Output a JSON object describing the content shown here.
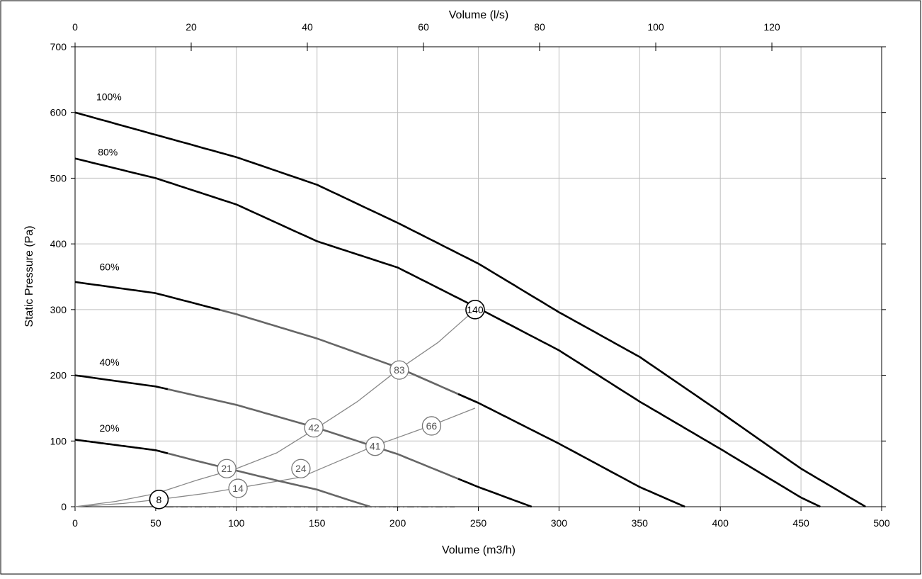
{
  "chart_data": {
    "type": "line",
    "title": "",
    "xlabel": "Volume (m3/h)",
    "ylabel": "Static Pressure (Pa)",
    "x2label": "Volume (l/s)",
    "xlim": [
      0,
      500
    ],
    "ylim": [
      0,
      700
    ],
    "x2lim": [
      0,
      138.9
    ],
    "grid": true,
    "x_ticks": [
      "0",
      "50",
      "100",
      "150",
      "200",
      "250",
      "300",
      "350",
      "400",
      "450",
      "500"
    ],
    "y_ticks": [
      "0",
      "100",
      "200",
      "300",
      "400",
      "500",
      "600",
      "700"
    ],
    "x2_ticks": [
      "0",
      "20",
      "40",
      "60",
      "80",
      "100",
      "120"
    ],
    "colors": {
      "fan_curve": "#000000",
      "operating_curve": "#666666",
      "system_curve": "#888888",
      "region_fill": "#f6f6f6"
    },
    "operating_region": {
      "x": [
        57,
        235
      ],
      "y": [
        0,
        300
      ]
    },
    "series": [
      {
        "name": "100%",
        "label_at": [
          7,
          612
        ],
        "values": [
          [
            0,
            600
          ],
          [
            50,
            566
          ],
          [
            100,
            532
          ],
          [
            150,
            490
          ],
          [
            200,
            432
          ],
          [
            250,
            370
          ],
          [
            300,
            296
          ],
          [
            350,
            228
          ],
          [
            400,
            144
          ],
          [
            450,
            58
          ],
          [
            490,
            0
          ]
        ]
      },
      {
        "name": "80%",
        "label_at": [
          8,
          528
        ],
        "values": [
          [
            0,
            530
          ],
          [
            50,
            500
          ],
          [
            100,
            460
          ],
          [
            150,
            404
          ],
          [
            200,
            364
          ],
          [
            250,
            302
          ],
          [
            300,
            238
          ],
          [
            350,
            160
          ],
          [
            400,
            88
          ],
          [
            450,
            14
          ],
          [
            462,
            0
          ]
        ]
      },
      {
        "name": "60%",
        "label_at": [
          9,
          353
        ],
        "values": [
          [
            0,
            342
          ],
          [
            50,
            325
          ],
          [
            100,
            293
          ],
          [
            150,
            256
          ],
          [
            200,
            212
          ],
          [
            250,
            158
          ],
          [
            300,
            96
          ],
          [
            350,
            30
          ],
          [
            378,
            0
          ]
        ]
      },
      {
        "name": "40%",
        "label_at": [
          9,
          208
        ],
        "values": [
          [
            0,
            200
          ],
          [
            50,
            183
          ],
          [
            100,
            155
          ],
          [
            150,
            120
          ],
          [
            200,
            80
          ],
          [
            250,
            30
          ],
          [
            283,
            0
          ]
        ]
      },
      {
        "name": "20%",
        "label_at": [
          9,
          108
        ],
        "values": [
          [
            0,
            102
          ],
          [
            25,
            94
          ],
          [
            50,
            86
          ],
          [
            75,
            70
          ],
          [
            100,
            55
          ],
          [
            125,
            40
          ],
          [
            150,
            26
          ],
          [
            170,
            10
          ],
          [
            183,
            0
          ]
        ]
      }
    ],
    "system_curves": [
      {
        "values": [
          [
            0,
            0
          ],
          [
            25,
            8
          ],
          [
            50,
            20
          ],
          [
            75,
            40
          ],
          [
            100,
            58
          ],
          [
            125,
            82
          ],
          [
            150,
            120
          ],
          [
            175,
            160
          ],
          [
            200,
            208
          ],
          [
            225,
            250
          ],
          [
            248,
            300
          ]
        ]
      },
      {
        "values": [
          [
            0,
            0
          ],
          [
            30,
            5
          ],
          [
            55,
            12
          ],
          [
            80,
            20
          ],
          [
            100,
            28
          ],
          [
            140,
            45
          ],
          [
            185,
            92
          ],
          [
            220,
            123
          ],
          [
            248,
            150
          ]
        ]
      }
    ],
    "points": [
      {
        "label": "140",
        "x": 248,
        "y": 300,
        "style": "primary"
      },
      {
        "label": "83",
        "x": 201,
        "y": 208,
        "style": "secondary"
      },
      {
        "label": "42",
        "x": 148,
        "y": 120,
        "style": "secondary"
      },
      {
        "label": "21",
        "x": 94,
        "y": 58,
        "style": "secondary"
      },
      {
        "label": "8",
        "x": 52,
        "y": 11,
        "style": "primary"
      },
      {
        "label": "66",
        "x": 221,
        "y": 123,
        "style": "secondary"
      },
      {
        "label": "41",
        "x": 186,
        "y": 92,
        "style": "secondary"
      },
      {
        "label": "24",
        "x": 140,
        "y": 58,
        "style": "secondary"
      },
      {
        "label": "14",
        "x": 101,
        "y": 28,
        "style": "secondary"
      }
    ]
  }
}
